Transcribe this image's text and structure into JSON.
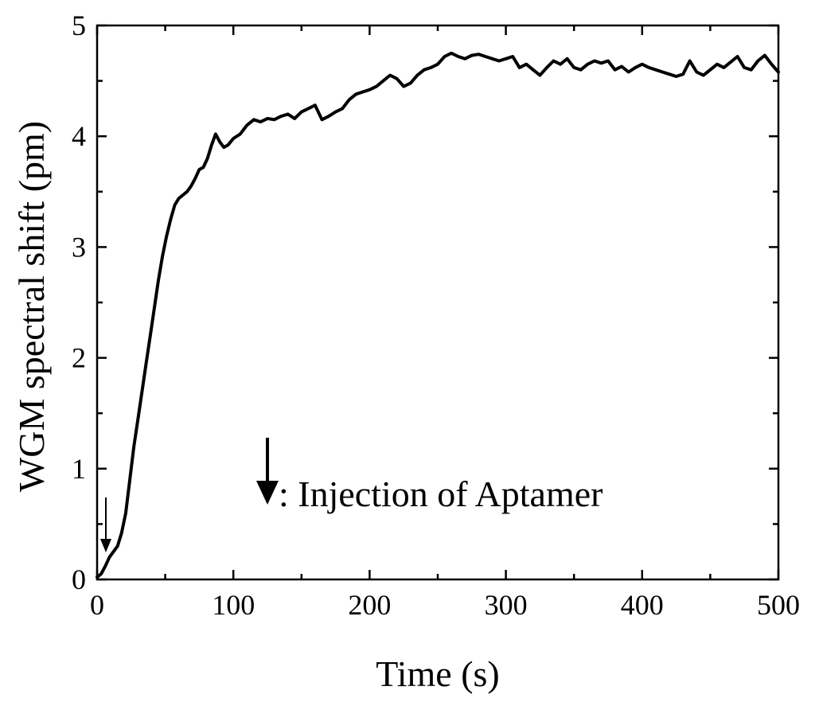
{
  "chart_data": {
    "type": "line",
    "title": "",
    "xlabel": "Time (s)",
    "ylabel": "WGM spectral shift  (pm)",
    "xlim": [
      0,
      500
    ],
    "ylim": [
      0,
      5
    ],
    "xticks": [
      "0",
      "100",
      "200",
      "300",
      "400",
      "500"
    ],
    "yticks": [
      "0",
      "1",
      "2",
      "3",
      "4",
      "5"
    ],
    "grid": false,
    "legend": "none",
    "annotations": [
      {
        "text": ": Injection of Aptamer",
        "x": 125,
        "y": 0.72,
        "kind": "arrow-legend"
      },
      {
        "text": "",
        "x": 6,
        "y": 0.25,
        "kind": "injection-arrow"
      }
    ],
    "series": [
      {
        "color": "#000000",
        "x": [
          0,
          3,
          6,
          9,
          12,
          15,
          18,
          21,
          24,
          27,
          30,
          33,
          36,
          39,
          42,
          45,
          48,
          51,
          54,
          57,
          60,
          63,
          66,
          69,
          72,
          75,
          78,
          81,
          84,
          87,
          90,
          93,
          96,
          100,
          105,
          110,
          115,
          120,
          125,
          130,
          135,
          140,
          145,
          150,
          155,
          160,
          165,
          170,
          175,
          180,
          185,
          190,
          195,
          200,
          205,
          210,
          215,
          220,
          225,
          230,
          235,
          240,
          245,
          250,
          255,
          260,
          265,
          270,
          275,
          280,
          285,
          290,
          295,
          300,
          305,
          310,
          315,
          320,
          325,
          330,
          335,
          340,
          345,
          350,
          355,
          360,
          365,
          370,
          375,
          380,
          385,
          390,
          395,
          400,
          405,
          410,
          415,
          420,
          425,
          430,
          435,
          440,
          445,
          450,
          455,
          460,
          465,
          470,
          475,
          480,
          485,
          490,
          495,
          500
        ],
        "y": [
          0.02,
          0.05,
          0.12,
          0.2,
          0.25,
          0.3,
          0.42,
          0.6,
          0.9,
          1.2,
          1.45,
          1.7,
          1.95,
          2.2,
          2.45,
          2.7,
          2.92,
          3.1,
          3.25,
          3.38,
          3.44,
          3.47,
          3.5,
          3.55,
          3.62,
          3.7,
          3.72,
          3.8,
          3.92,
          4.02,
          3.95,
          3.9,
          3.92,
          3.98,
          4.02,
          4.1,
          4.15,
          4.13,
          4.16,
          4.15,
          4.18,
          4.2,
          4.16,
          4.22,
          4.25,
          4.28,
          4.15,
          4.18,
          4.22,
          4.25,
          4.33,
          4.38,
          4.4,
          4.42,
          4.45,
          4.5,
          4.55,
          4.52,
          4.45,
          4.48,
          4.55,
          4.6,
          4.62,
          4.65,
          4.72,
          4.75,
          4.72,
          4.7,
          4.73,
          4.74,
          4.72,
          4.7,
          4.68,
          4.7,
          4.72,
          4.62,
          4.65,
          4.6,
          4.55,
          4.62,
          4.68,
          4.65,
          4.7,
          4.62,
          4.6,
          4.65,
          4.68,
          4.66,
          4.68,
          4.6,
          4.63,
          4.58,
          4.62,
          4.65,
          4.62,
          4.6,
          4.58,
          4.56,
          4.54,
          4.56,
          4.68,
          4.58,
          4.55,
          4.6,
          4.65,
          4.62,
          4.67,
          4.72,
          4.62,
          4.6,
          4.68,
          4.73,
          4.65,
          4.58
        ]
      }
    ]
  }
}
